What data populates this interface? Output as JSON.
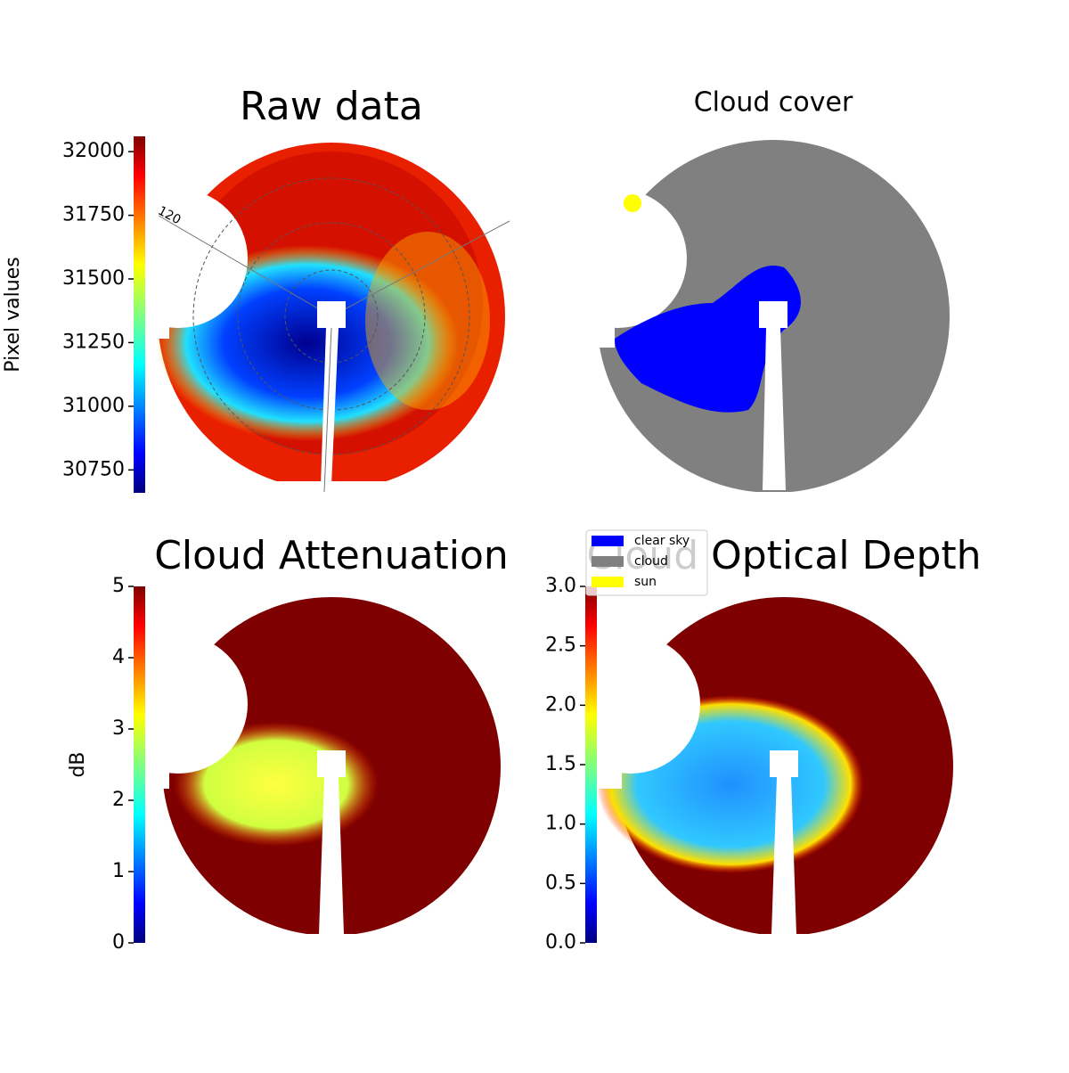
{
  "chart_data": [
    {
      "type": "image",
      "title": "Raw data",
      "colorbar_label": "Pixel values",
      "colormap": "jet",
      "ylim": [
        30660,
        32060
      ],
      "yticks": [
        30750,
        31000,
        31250,
        31500,
        31750,
        32000
      ],
      "annotations": [
        "120"
      ]
    },
    {
      "type": "image",
      "title": "Cloud cover",
      "series": [
        {
          "name": "clear sky",
          "color": "#0000ff"
        },
        {
          "name": "cloud",
          "color": "#808080"
        },
        {
          "name": "sun",
          "color": "#ffff00"
        }
      ]
    },
    {
      "type": "image",
      "title": "Cloud Attenuation",
      "colorbar_label": "dB",
      "colormap": "jet",
      "ylim": [
        0,
        5
      ],
      "yticks": [
        0,
        1,
        2,
        3,
        4,
        5
      ]
    },
    {
      "type": "image",
      "title": "Cloud Optical Depth",
      "colormap": "jet",
      "ylim": [
        0,
        3
      ],
      "yticks": [
        {
          "value": 0,
          "label": "0.0"
        },
        {
          "value": 0.5,
          "label": "0.5"
        },
        {
          "value": 1,
          "label": "1.0"
        },
        {
          "value": 1.5,
          "label": "1.5"
        },
        {
          "value": 2,
          "label": "2.0"
        },
        {
          "value": 2.5,
          "label": "2.5"
        },
        {
          "value": 3,
          "label": "3.0"
        }
      ]
    }
  ]
}
